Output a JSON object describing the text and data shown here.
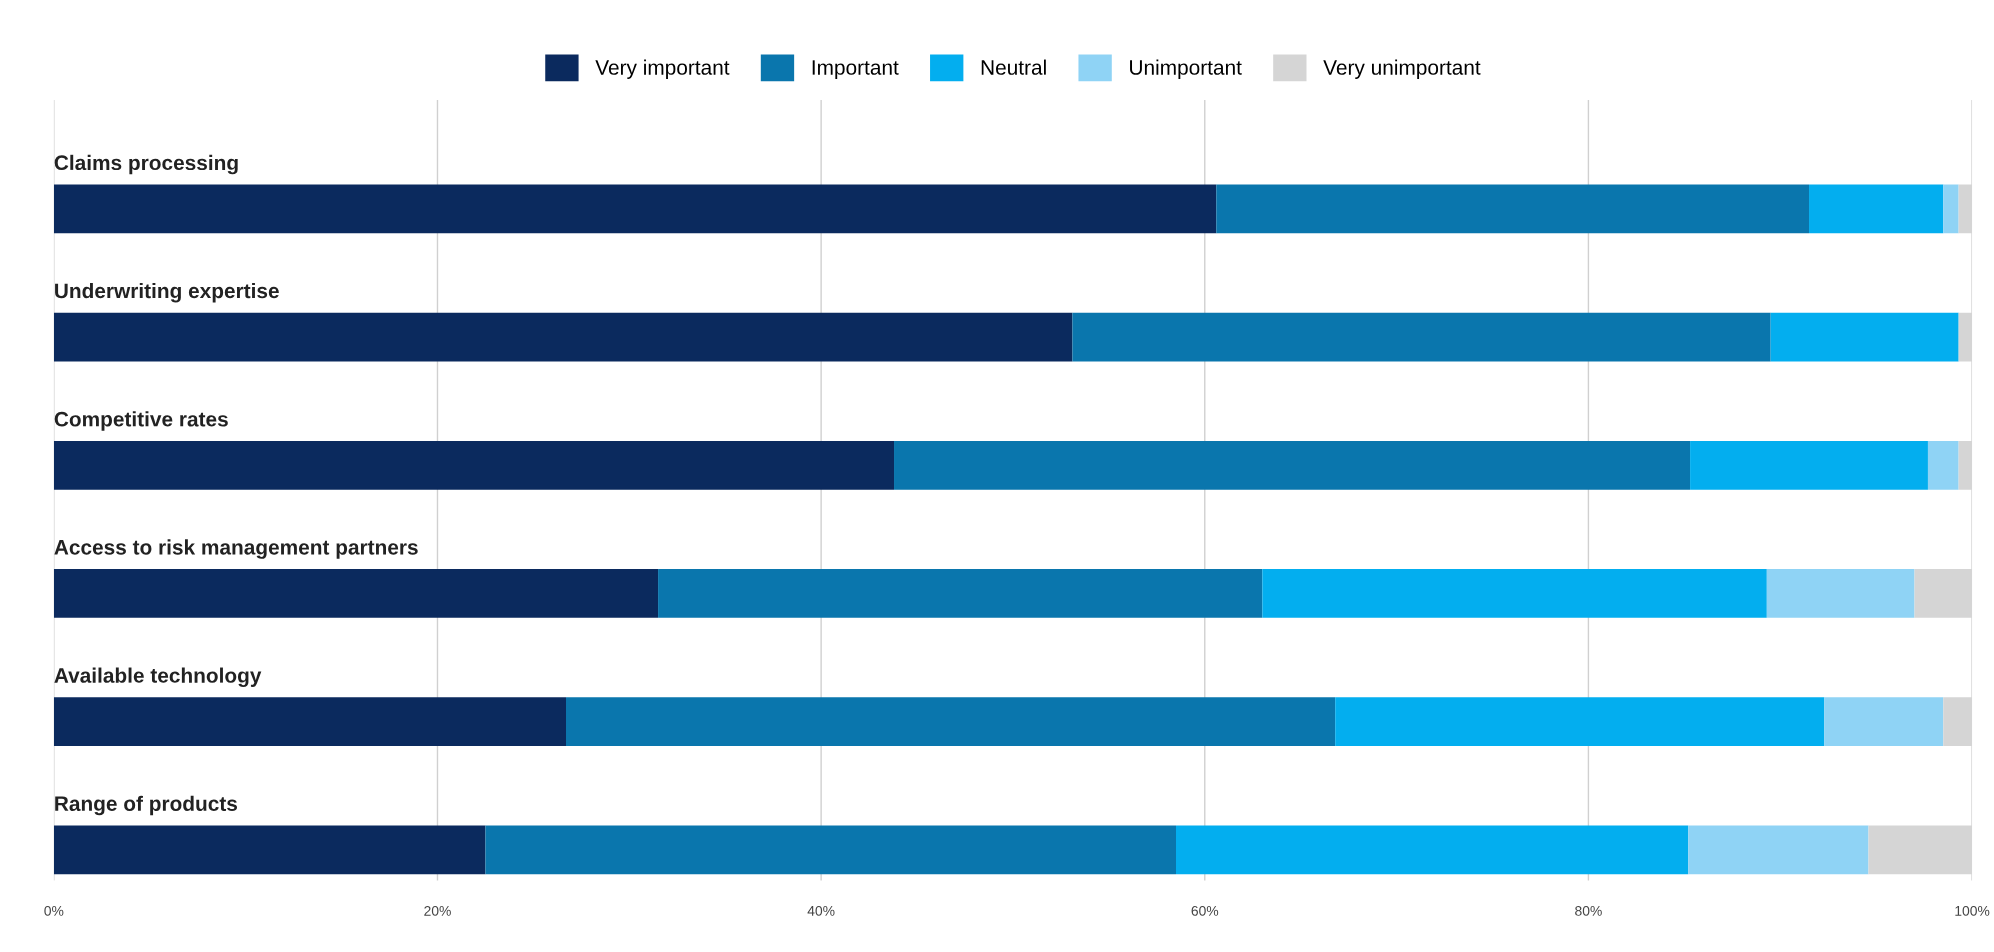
{
  "chart_data": {
    "type": "bar",
    "orientation": "horizontal",
    "stacked": true,
    "categories": [
      "Claims processing",
      "Underwriting expertise",
      "Competitive rates",
      "Access to risk management partners",
      "Available technology",
      "Range of products"
    ],
    "series": [
      {
        "name": "Very important",
        "color": "#0b2a5e",
        "values": [
          60.6,
          53.1,
          43.8,
          31.5,
          26.7,
          22.5
        ]
      },
      {
        "name": "Important",
        "color": "#0a76ad",
        "values": [
          30.9,
          36.4,
          41.5,
          31.5,
          40.1,
          36.0
        ]
      },
      {
        "name": "Neutral",
        "color": "#03aeef",
        "values": [
          7.0,
          9.8,
          12.4,
          26.3,
          25.5,
          26.7
        ]
      },
      {
        "name": "Unimportant",
        "color": "#8fd3f5",
        "values": [
          0.8,
          0,
          1.6,
          7.7,
          6.2,
          9.4
        ]
      },
      {
        "name": "Very unimportant",
        "color": "#d5d5d5",
        "values": [
          0.7,
          0.7,
          0.7,
          3.0,
          1.5,
          5.4
        ]
      }
    ],
    "xlim": [
      0,
      100
    ],
    "xticks": [
      {
        "value": 0,
        "label": "0%"
      },
      {
        "value": 20,
        "label": "20%"
      },
      {
        "value": 40,
        "label": "40%"
      },
      {
        "value": 60,
        "label": "60%"
      },
      {
        "value": 80,
        "label": "80%"
      },
      {
        "value": 100,
        "label": "100%"
      }
    ],
    "grid": "x",
    "legend": "top"
  }
}
